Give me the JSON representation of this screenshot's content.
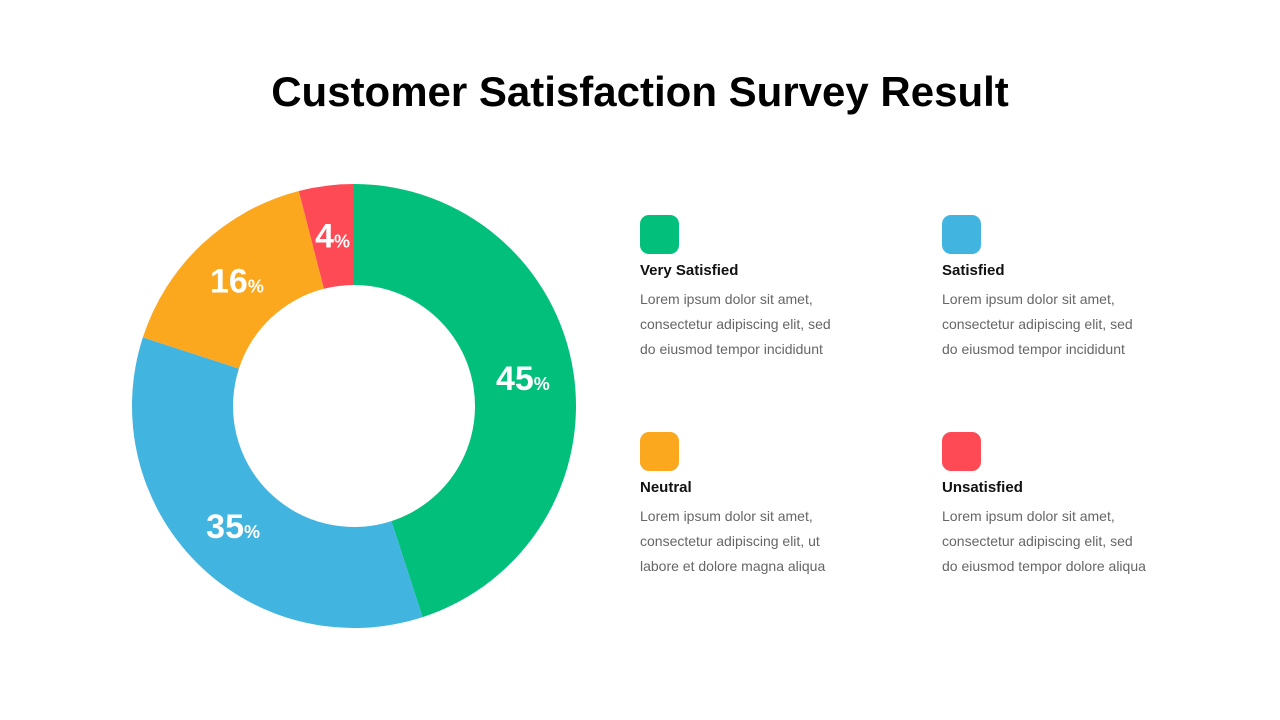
{
  "chart_data": {
    "type": "pie",
    "variant": "donut",
    "title": "Customer Satisfaction Survey Result",
    "start": "top",
    "direction": "clockwise",
    "slices": [
      {
        "name": "Very Satisfied",
        "value": 45,
        "label": "45",
        "unit": "%",
        "color": "#02BF7B",
        "description": "Lorem ipsum dolor sit amet,\nconsectetur adipiscing elit, sed\ndo eiusmod tempor incididunt"
      },
      {
        "name": "Satisfied",
        "value": 35,
        "label": "35",
        "unit": "%",
        "color": "#42B4E0",
        "description": "Lorem ipsum dolor sit amet,\nconsectetur adipiscing elit, sed\ndo eiusmod tempor incididunt"
      },
      {
        "name": "Neutral",
        "value": 16,
        "label": "16",
        "unit": "%",
        "color": "#FBA81F",
        "description": "Lorem ipsum dolor sit amet,\nconsectetur adipiscing elit, ut\nlabore et dolore magna aliqua"
      },
      {
        "name": "Unsatisfied",
        "value": 4,
        "label": "4",
        "unit": "%",
        "color": "#FD4A55",
        "description": "Lorem ipsum dolor sit amet,\nconsectetur adipiscing elit, sed\ndo eiusmod tempor dolore aliqua"
      }
    ]
  }
}
